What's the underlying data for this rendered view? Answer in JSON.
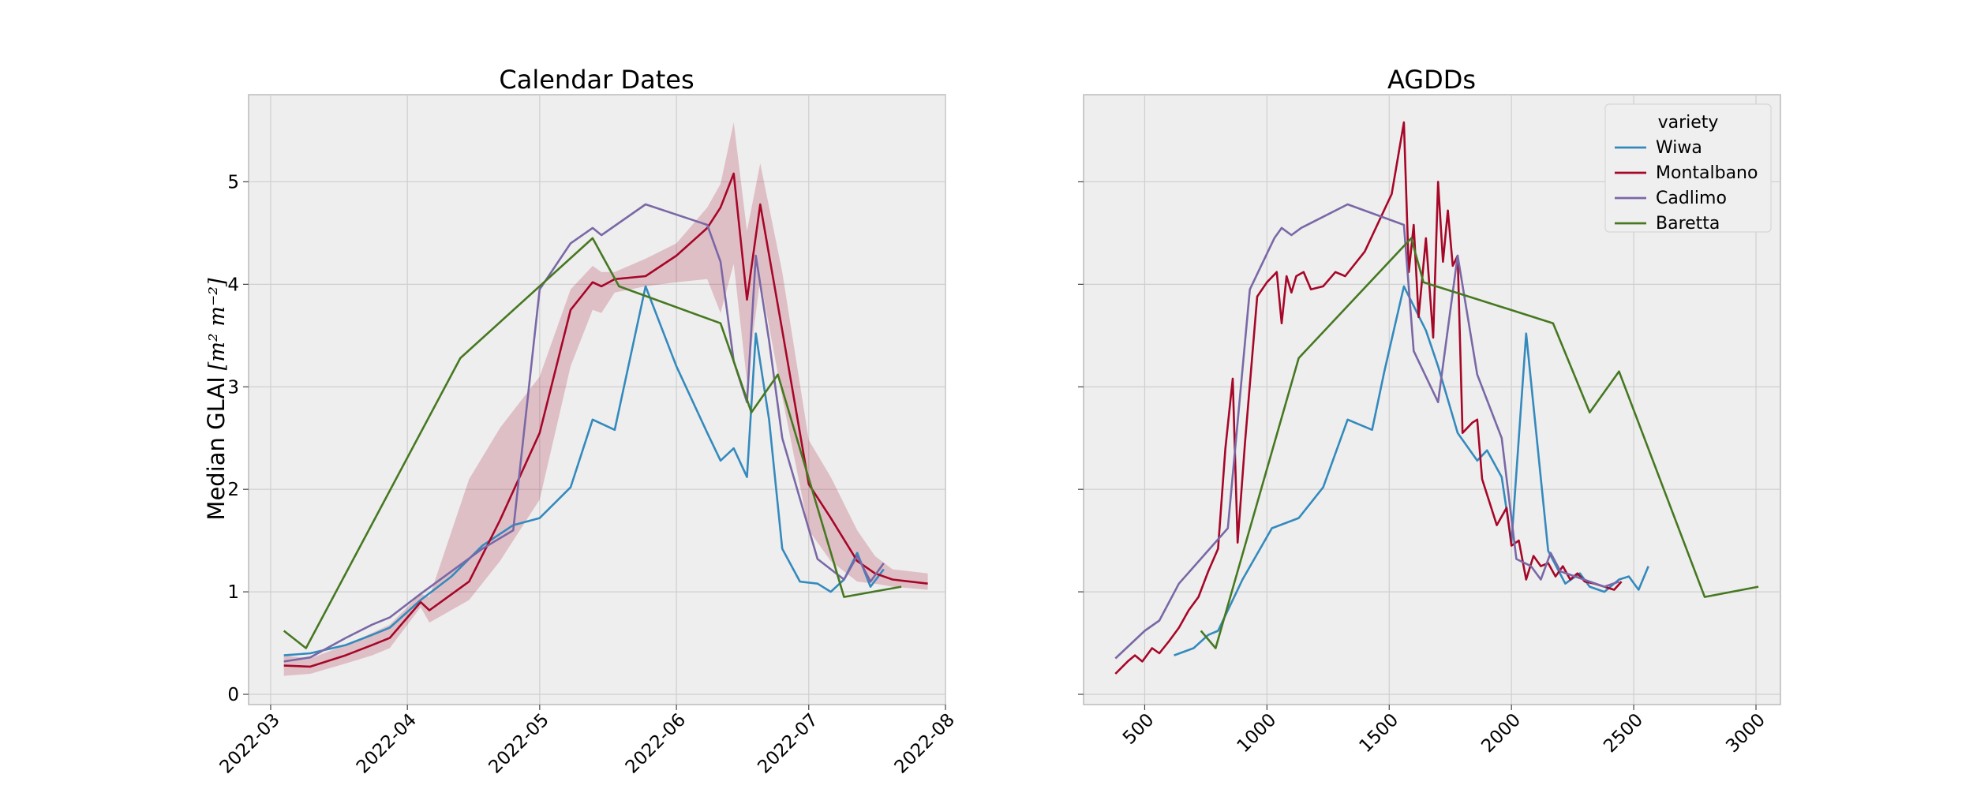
{
  "chart_data": [
    {
      "type": "line",
      "title": "Calendar Dates",
      "xlabel": "",
      "ylabel": "Median GLAI",
      "ylabel_unit": "[m² m⁻²]",
      "x_type": "date",
      "xlim": [
        "2022-02-24",
        "2022-08-01"
      ],
      "ylim": [
        -0.1,
        5.85
      ],
      "x_ticks": [
        "2022-03-01",
        "2022-04-01",
        "2022-05-01",
        "2022-06-01",
        "2022-07-01",
        "2022-08-01"
      ],
      "x_tick_labels": [
        "2022-03",
        "2022-04",
        "2022-05",
        "2022-06",
        "2022-07",
        "2022-08"
      ],
      "y_ticks": [
        0,
        1,
        2,
        3,
        4,
        5
      ],
      "y_tick_labels": [
        "0",
        "1",
        "2",
        "3",
        "4",
        "5"
      ],
      "grid": true,
      "series": [
        {
          "name": "Wiwa",
          "color": "#348abd",
          "x": [
            "2022-03-04",
            "2022-03-10",
            "2022-03-18",
            "2022-03-24",
            "2022-03-28",
            "2022-04-04",
            "2022-04-11",
            "2022-04-18",
            "2022-04-25",
            "2022-05-01",
            "2022-05-08",
            "2022-05-13",
            "2022-05-18",
            "2022-05-25",
            "2022-06-01",
            "2022-06-08",
            "2022-06-11",
            "2022-06-14",
            "2022-06-17",
            "2022-06-19",
            "2022-06-22",
            "2022-06-25",
            "2022-06-29",
            "2022-07-03",
            "2022-07-06",
            "2022-07-09",
            "2022-07-12",
            "2022-07-15",
            "2022-07-18"
          ],
          "y": [
            0.38,
            0.4,
            0.48,
            0.58,
            0.65,
            0.92,
            1.15,
            1.45,
            1.65,
            1.72,
            2.02,
            2.68,
            2.58,
            3.98,
            3.2,
            2.55,
            2.28,
            2.4,
            2.12,
            3.52,
            2.68,
            1.42,
            1.1,
            1.08,
            1.0,
            1.12,
            1.38,
            1.05,
            1.22
          ]
        },
        {
          "name": "Montalbano",
          "color": "#a60628",
          "x": [
            "2022-03-04",
            "2022-03-10",
            "2022-03-18",
            "2022-03-24",
            "2022-03-28",
            "2022-04-04",
            "2022-04-06",
            "2022-04-15",
            "2022-04-22",
            "2022-05-01",
            "2022-05-08",
            "2022-05-13",
            "2022-05-15",
            "2022-05-18",
            "2022-05-25",
            "2022-06-01",
            "2022-06-08",
            "2022-06-11",
            "2022-06-14",
            "2022-06-17",
            "2022-06-20",
            "2022-06-25",
            "2022-07-01",
            "2022-07-06",
            "2022-07-12",
            "2022-07-16",
            "2022-07-20",
            "2022-07-28"
          ],
          "y": [
            0.28,
            0.27,
            0.38,
            0.48,
            0.55,
            0.9,
            0.82,
            1.1,
            1.7,
            2.55,
            3.75,
            4.02,
            3.98,
            4.05,
            4.08,
            4.28,
            4.55,
            4.75,
            5.08,
            3.85,
            4.78,
            3.55,
            2.05,
            1.72,
            1.3,
            1.18,
            1.12,
            1.08
          ]
        },
        {
          "name": "Cadlimo",
          "color": "#7a68a6",
          "x": [
            "2022-03-04",
            "2022-03-10",
            "2022-03-18",
            "2022-03-24",
            "2022-03-28",
            "2022-04-04",
            "2022-04-11",
            "2022-04-18",
            "2022-04-25",
            "2022-05-01",
            "2022-05-08",
            "2022-05-13",
            "2022-05-15",
            "2022-05-25",
            "2022-06-08",
            "2022-06-11",
            "2022-06-14",
            "2022-06-17",
            "2022-06-19",
            "2022-06-22",
            "2022-06-25",
            "2022-07-03",
            "2022-07-09",
            "2022-07-12",
            "2022-07-15",
            "2022-07-18"
          ],
          "y": [
            0.32,
            0.36,
            0.55,
            0.68,
            0.75,
            0.98,
            1.2,
            1.42,
            1.6,
            3.95,
            4.4,
            4.55,
            4.48,
            4.78,
            4.58,
            4.22,
            3.25,
            2.85,
            4.28,
            3.45,
            2.5,
            1.32,
            1.12,
            1.35,
            1.1,
            1.28
          ]
        },
        {
          "name": "Baretta",
          "color": "#467821",
          "x": [
            "2022-03-04",
            "2022-03-09",
            "2022-04-13",
            "2022-05-13",
            "2022-05-19",
            "2022-06-11",
            "2022-06-18",
            "2022-06-24",
            "2022-07-09",
            "2022-07-22"
          ],
          "y": [
            0.62,
            0.45,
            3.28,
            4.45,
            3.98,
            3.62,
            2.75,
            3.12,
            0.95,
            1.05
          ]
        }
      ],
      "band": {
        "series": "Montalbano",
        "color": "#a60628",
        "x": [
          "2022-03-04",
          "2022-03-10",
          "2022-03-18",
          "2022-03-24",
          "2022-03-28",
          "2022-04-04",
          "2022-04-06",
          "2022-04-15",
          "2022-04-22",
          "2022-05-01",
          "2022-05-08",
          "2022-05-13",
          "2022-05-15",
          "2022-05-18",
          "2022-05-25",
          "2022-06-01",
          "2022-06-08",
          "2022-06-11",
          "2022-06-14",
          "2022-06-17",
          "2022-06-20",
          "2022-06-25",
          "2022-07-01",
          "2022-07-06",
          "2022-07-12",
          "2022-07-16",
          "2022-07-20",
          "2022-07-28"
        ],
        "low": [
          0.18,
          0.2,
          0.3,
          0.38,
          0.45,
          0.85,
          0.7,
          0.92,
          1.3,
          1.9,
          3.2,
          3.75,
          3.72,
          3.92,
          3.98,
          4.02,
          4.05,
          3.72,
          4.2,
          3.05,
          4.05,
          2.9,
          1.6,
          1.3,
          1.1,
          1.08,
          1.05,
          1.02
        ],
        "high": [
          0.38,
          0.35,
          0.48,
          0.6,
          0.68,
          0.98,
          0.95,
          2.1,
          2.6,
          3.1,
          3.95,
          4.18,
          4.12,
          4.12,
          4.25,
          4.4,
          4.75,
          4.98,
          5.58,
          4.52,
          5.18,
          4.12,
          2.48,
          2.12,
          1.6,
          1.35,
          1.22,
          1.18
        ]
      }
    },
    {
      "type": "line",
      "title": "AGDDs",
      "xlabel": "",
      "ylabel": "",
      "xlim": [
        250,
        3100
      ],
      "ylim": [
        -0.1,
        5.85
      ],
      "x_ticks": [
        500,
        1000,
        1500,
        2000,
        2500,
        3000
      ],
      "x_tick_labels": [
        "500",
        "1000",
        "1500",
        "2000",
        "2500",
        "3000"
      ],
      "y_ticks": [
        0,
        1,
        2,
        3,
        4,
        5
      ],
      "grid": true,
      "legend": {
        "title": "variety",
        "placement": "top-right",
        "entries": [
          "Wiwa",
          "Montalbano",
          "Cadlimo",
          "Baretta"
        ]
      },
      "series": [
        {
          "name": "Wiwa",
          "color": "#348abd",
          "x": [
            620,
            700,
            760,
            800,
            900,
            1020,
            1130,
            1230,
            1330,
            1430,
            1480,
            1560,
            1650,
            1700,
            1780,
            1860,
            1900,
            1960,
            2000,
            2060,
            2150,
            2220,
            2280,
            2320,
            2380,
            2440,
            2480,
            2520,
            2560
          ],
          "y": [
            0.38,
            0.45,
            0.58,
            0.62,
            1.12,
            1.62,
            1.72,
            2.02,
            2.68,
            2.58,
            3.15,
            3.98,
            3.55,
            3.2,
            2.55,
            2.28,
            2.38,
            2.12,
            1.48,
            3.52,
            1.4,
            1.08,
            1.18,
            1.05,
            1.0,
            1.12,
            1.15,
            1.02,
            1.25
          ]
        },
        {
          "name": "Montalbano",
          "color": "#a60628",
          "x": [
            380,
            430,
            460,
            490,
            530,
            560,
            600,
            640,
            680,
            720,
            760,
            800,
            830,
            860,
            880,
            910,
            960,
            1000,
            1040,
            1060,
            1080,
            1100,
            1120,
            1150,
            1180,
            1230,
            1280,
            1320,
            1400,
            1510,
            1560,
            1580,
            1600,
            1620,
            1650,
            1680,
            1700,
            1720,
            1740,
            1760,
            1780,
            1800,
            1820,
            1840,
            1860,
            1880,
            1940,
            1980,
            2000,
            2030,
            2060,
            2090,
            2120,
            2150,
            2180,
            2210,
            2240,
            2270,
            2300,
            2340,
            2380,
            2420,
            2450
          ],
          "y": [
            0.2,
            0.32,
            0.38,
            0.32,
            0.45,
            0.4,
            0.52,
            0.65,
            0.82,
            0.95,
            1.2,
            1.42,
            2.4,
            3.08,
            1.48,
            2.45,
            3.88,
            4.02,
            4.12,
            3.62,
            4.08,
            3.92,
            4.08,
            4.12,
            3.95,
            3.98,
            4.12,
            4.08,
            4.32,
            4.88,
            5.58,
            4.12,
            4.58,
            3.68,
            4.45,
            3.48,
            5.0,
            4.22,
            4.72,
            4.18,
            4.28,
            2.55,
            2.6,
            2.65,
            2.68,
            2.1,
            1.65,
            1.82,
            1.45,
            1.5,
            1.12,
            1.35,
            1.25,
            1.28,
            1.15,
            1.25,
            1.12,
            1.18,
            1.1,
            1.08,
            1.05,
            1.02,
            1.1
          ]
        },
        {
          "name": "Cadlimo",
          "color": "#7a68a6",
          "x": [
            380,
            500,
            560,
            640,
            740,
            840,
            930,
            1030,
            1060,
            1100,
            1140,
            1330,
            1560,
            1600,
            1700,
            1780,
            1860,
            1960,
            2020,
            2080,
            2120,
            2160,
            2200,
            2260,
            2320,
            2380,
            2440
          ],
          "y": [
            0.35,
            0.62,
            0.72,
            1.08,
            1.35,
            1.62,
            3.95,
            4.45,
            4.55,
            4.48,
            4.55,
            4.78,
            4.58,
            3.35,
            2.85,
            4.28,
            3.12,
            2.5,
            1.32,
            1.25,
            1.12,
            1.38,
            1.2,
            1.15,
            1.1,
            1.05,
            1.1
          ]
        },
        {
          "name": "Baretta",
          "color": "#467821",
          "x": [
            730,
            790,
            1130,
            1590,
            1640,
            2170,
            2320,
            2440,
            2790,
            3010
          ],
          "y": [
            0.62,
            0.45,
            3.28,
            4.45,
            4.02,
            3.62,
            2.75,
            3.15,
            0.95,
            1.05
          ]
        }
      ]
    }
  ]
}
